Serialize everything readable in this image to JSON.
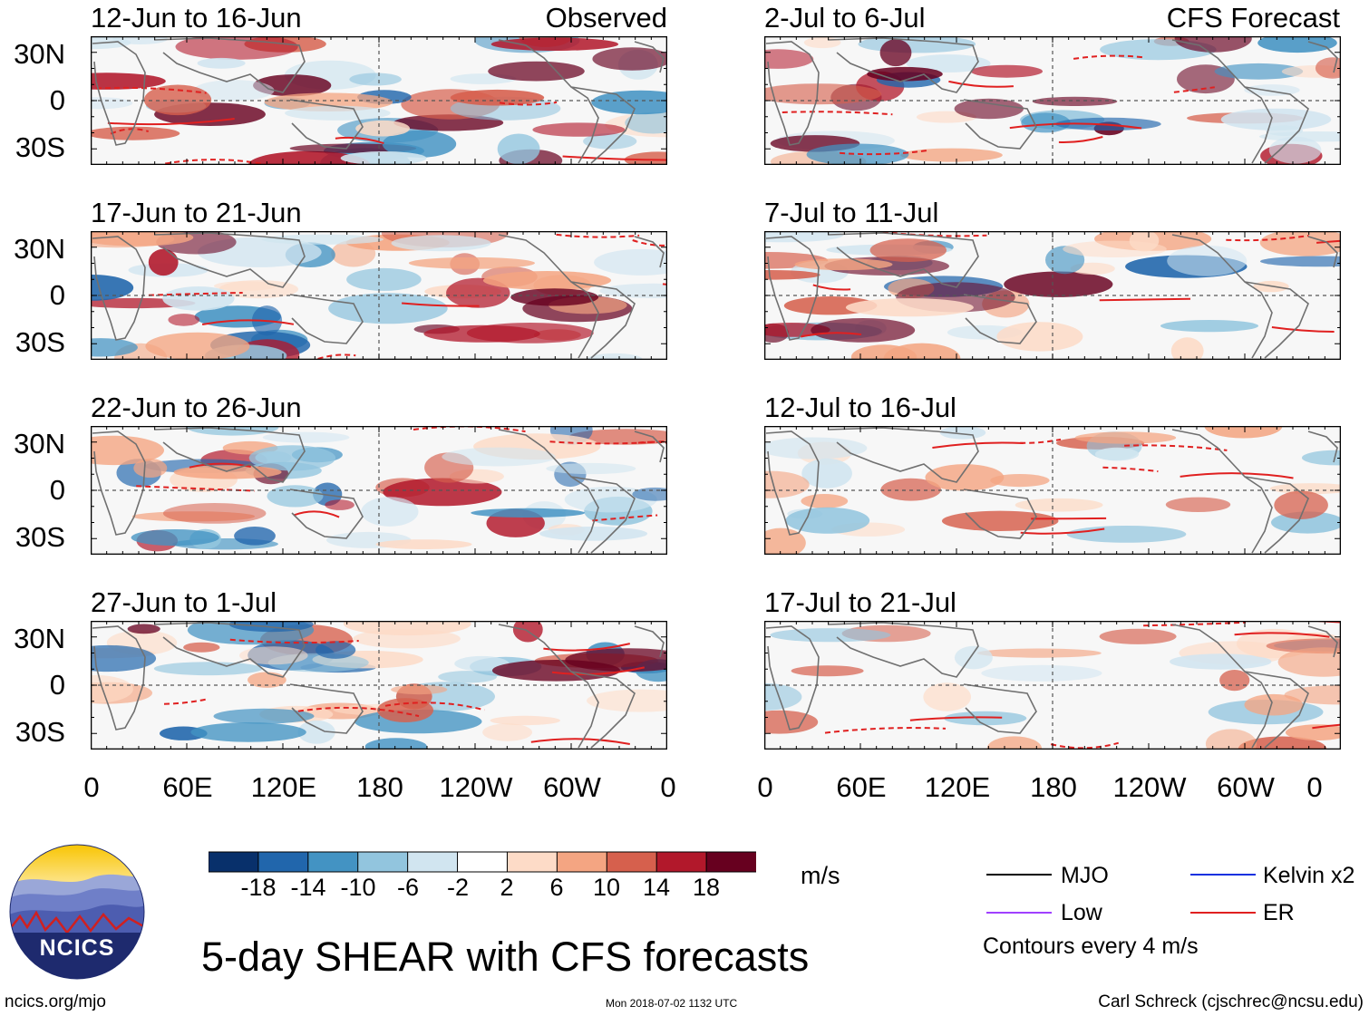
{
  "header": {
    "observed_label": "Observed",
    "forecast_label": "CFS Forecast"
  },
  "panels_left": [
    {
      "title": "12-Jun to 16-Jun"
    },
    {
      "title": "17-Jun to 21-Jun"
    },
    {
      "title": "22-Jun to 26-Jun"
    },
    {
      "title": "27-Jun to 1-Jul"
    }
  ],
  "panels_right": [
    {
      "title": "2-Jul to 6-Jul"
    },
    {
      "title": "7-Jul to 11-Jul"
    },
    {
      "title": "12-Jul to 16-Jul"
    },
    {
      "title": "17-Jul to 21-Jul"
    }
  ],
  "y_ticks": [
    "30N",
    "0",
    "30S"
  ],
  "x_ticks": [
    "0",
    "60E",
    "120E",
    "180",
    "120W",
    "60W",
    "0"
  ],
  "colorbar": {
    "colors": [
      "#08306b",
      "#2166ac",
      "#4393c3",
      "#92c5de",
      "#d1e5f0",
      "#ffffff",
      "#fddbc7",
      "#f4a582",
      "#d6604d",
      "#b2182b",
      "#67001f"
    ],
    "labels": [
      "-18",
      "-14",
      "-10",
      "-6",
      "-2",
      "2",
      "6",
      "10",
      "14",
      "18"
    ],
    "units": "m/s"
  },
  "legend": {
    "items": [
      {
        "label": "MJO",
        "color": "#000000"
      },
      {
        "label": "Kelvin x2",
        "color": "#1030e0"
      },
      {
        "label": "Low",
        "color": "#a040ff"
      },
      {
        "label": "ER",
        "color": "#e02020"
      }
    ],
    "contours_note": "Contours every 4 m/s"
  },
  "logo": {
    "text": "NCICS"
  },
  "footer": {
    "title": "5-day SHEAR with CFS forecasts",
    "url": "ncics.org/mjo",
    "timestamp": "Mon 2018-07-02 1132 UTC",
    "credit": "Carl Schreck (cjschrec@ncsu.edu)"
  }
}
